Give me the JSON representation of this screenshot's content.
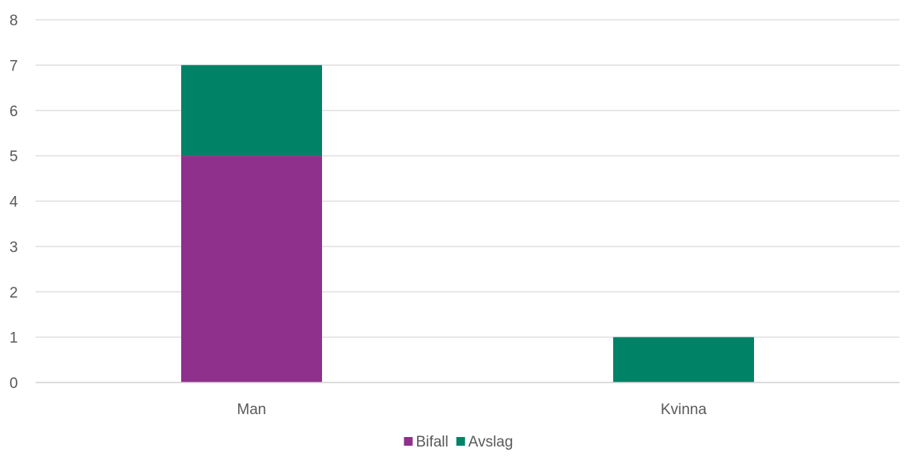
{
  "chart_data": {
    "type": "bar",
    "stacked": true,
    "categories": [
      "Man",
      "Kvinna"
    ],
    "series": [
      {
        "name": "Bifall",
        "values": [
          5,
          0
        ],
        "color": "#8E308C"
      },
      {
        "name": "Avslag",
        "values": [
          2,
          1
        ],
        "color": "#008266"
      }
    ],
    "ylim": [
      0,
      8
    ],
    "yticks": [
      "0",
      "1",
      "2",
      "3",
      "4",
      "5",
      "6",
      "7",
      "8"
    ],
    "grid": true,
    "legend_position": "bottom",
    "title": "",
    "xlabel": "",
    "ylabel": ""
  }
}
